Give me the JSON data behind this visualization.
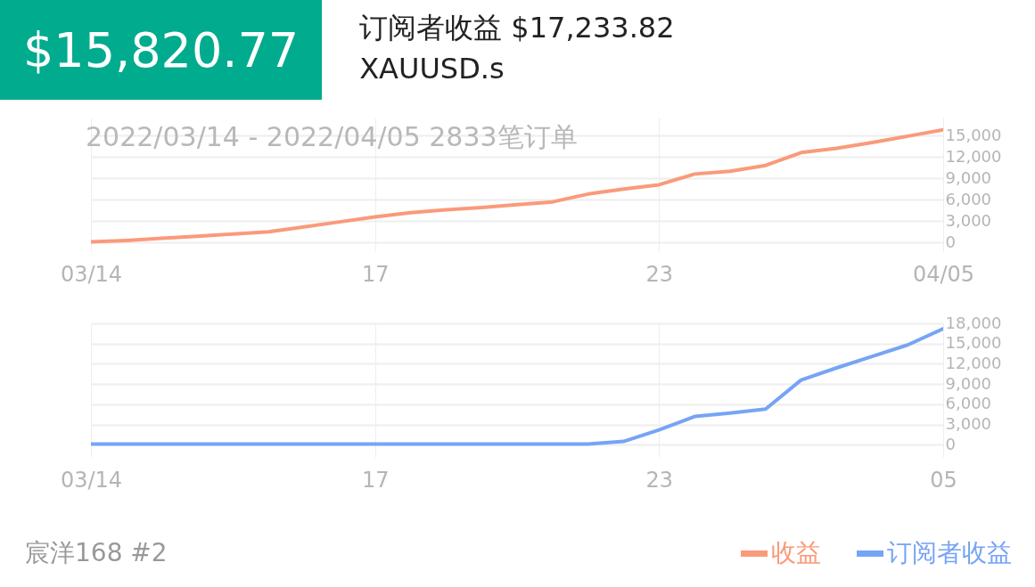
{
  "chart_data": [
    {
      "type": "line",
      "title": "$15,820.77",
      "subtitle": "订阅者收益 $17,233.82",
      "annotations": [
        "XAUUSD.s",
        "2022/03/14 - 2022/04/05  2833笔订单"
      ],
      "categories": [
        "03/14",
        null,
        null,
        null,
        null,
        null,
        null,
        null,
        "17",
        null,
        null,
        null,
        null,
        null,
        null,
        null,
        "23",
        null,
        null,
        null,
        null,
        null,
        null,
        null,
        "04/05"
      ],
      "ylim": [
        -1200,
        17500
      ],
      "yticks": [
        0,
        {
          "value": 3000,
          "label": "3,000"
        },
        {
          "value": 6000,
          "label": "6,000"
        },
        {
          "value": 9000,
          "label": "9,000"
        },
        {
          "value": 12000,
          "label": "12,000"
        },
        {
          "value": 15000,
          "label": "15,000"
        }
      ],
      "grid": true,
      "legend": "bottom right",
      "marker": "none",
      "line_style": "solid",
      "series": [
        {
          "name": "收益",
          "color": "#fa9a7a",
          "values": [
            100,
            300,
            600,
            900,
            1200,
            1500,
            2200,
            2900,
            3600,
            4200,
            4600,
            4900,
            5300,
            5700,
            6800,
            7500,
            8100,
            9600,
            10000,
            10800,
            12600,
            13200,
            14000,
            14900,
            15800
          ]
        }
      ]
    },
    {
      "type": "line",
      "annotations": [
        "宸洋168 #2"
      ],
      "categories": [
        "03/14",
        null,
        null,
        null,
        null,
        null,
        null,
        null,
        "17",
        null,
        null,
        null,
        null,
        null,
        null,
        null,
        "23",
        null,
        null,
        null,
        null,
        null,
        null,
        null,
        "05"
      ],
      "ylim": [
        -1800,
        18000
      ],
      "yticks": [
        0,
        {
          "value": 3000,
          "label": "3,000"
        },
        {
          "value": 6000,
          "label": "6,000"
        },
        {
          "value": 9000,
          "label": "9,000"
        },
        {
          "value": 12000,
          "label": "12,000"
        },
        {
          "value": 15000,
          "label": "15,000"
        },
        {
          "value": 18000,
          "label": "18,000"
        }
      ],
      "grid": true,
      "legend": "bottom right",
      "marker": "none",
      "line_style": "solid",
      "series": [
        {
          "name": "订阅者收益",
          "color": "#76a4f5",
          "values": [
            100,
            100,
            100,
            100,
            100,
            100,
            100,
            100,
            100,
            100,
            100,
            100,
            100,
            100,
            100,
            500,
            2200,
            4200,
            4700,
            5300,
            9600,
            11400,
            13100,
            14800,
            17200
          ]
        }
      ]
    }
  ]
}
